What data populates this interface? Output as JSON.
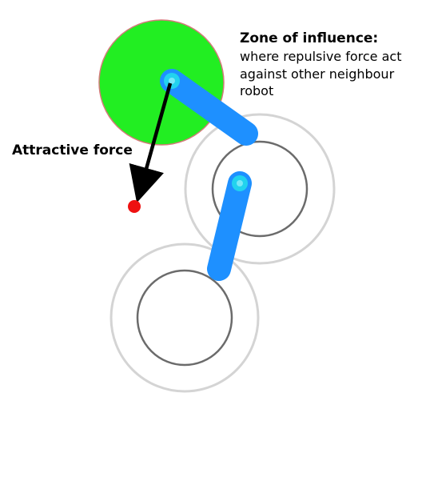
{
  "labels": {
    "zone_title": "Zone of influence:",
    "zone_desc_line1": "where repulsive force act",
    "zone_desc_line2": "against other neighbour",
    "zone_desc_line3": "robot",
    "attractive_force": "Attractive force"
  },
  "colors": {
    "zone_of_influence": "#22ee22",
    "zone_outline": "#d47a7a",
    "arm": "#1e90ff",
    "joint": "#22d3ee",
    "attractive_arrow": "#000000",
    "target": "#ee1111",
    "robot_outer_ring": "#d4d4d4",
    "robot_inner_ring": "#6b6b6b"
  },
  "icons": {
    "target": "red-dot",
    "arrow": "arrow-down"
  }
}
